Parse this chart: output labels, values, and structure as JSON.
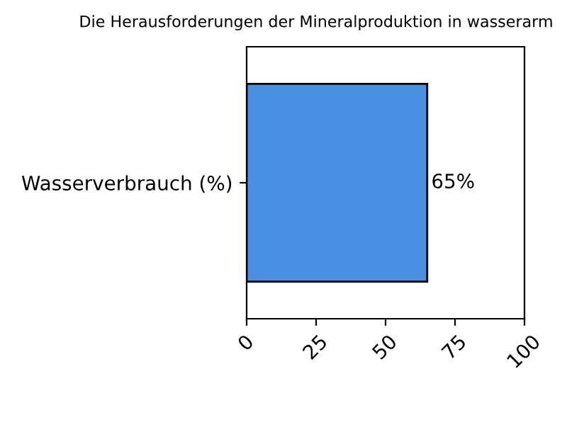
{
  "chart_data": {
    "type": "bar",
    "orientation": "horizontal",
    "title": "Die Herausforderungen der Mineralproduktion in wasserarm",
    "categories": [
      "Wasserverbrauch (%)"
    ],
    "values": [
      65
    ],
    "color": "#4a90e2",
    "value_labels": [
      "65%"
    ],
    "xlim": [
      0,
      100
    ],
    "xticks": [
      0,
      25,
      50,
      75,
      100
    ],
    "grid": false
  }
}
